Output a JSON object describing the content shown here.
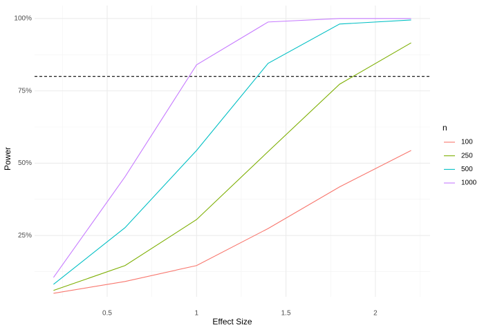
{
  "chart_data": {
    "type": "line",
    "x_label": "Effect Size",
    "y_label": "Power",
    "x": [
      0.2,
      0.6,
      1.0,
      1.4,
      1.8,
      2.2
    ],
    "series": [
      {
        "name": "100",
        "color": "#F8766D",
        "values": [
          5.0,
          9.1,
          14.6,
          27.4,
          41.8,
          54.4
        ]
      },
      {
        "name": "250",
        "color": "#7CAE00",
        "values": [
          6.0,
          14.6,
          30.5,
          54.0,
          77.3,
          91.6
        ]
      },
      {
        "name": "500",
        "color": "#00BFC4",
        "values": [
          8.1,
          27.7,
          54.4,
          84.5,
          98.1,
          99.5
        ]
      },
      {
        "name": "1000",
        "color": "#C77CFF",
        "values": [
          10.5,
          45.3,
          84.0,
          98.8,
          100,
          100
        ]
      }
    ],
    "legend_title": "n",
    "legend": "right",
    "xlim": [
      0.094,
      2.306
    ],
    "ylim": [
      3.8,
      104.5
    ],
    "xticks": [
      0.5,
      1.0,
      1.5,
      2.0
    ],
    "yticks": [
      {
        "value": 25,
        "label": "25%"
      },
      {
        "value": 50,
        "label": "50%"
      },
      {
        "value": 75,
        "label": "75%"
      },
      {
        "value": 100,
        "label": "100%"
      }
    ],
    "minor_xticks": [
      0.25,
      0.75,
      1.25,
      1.75,
      2.25
    ],
    "minor_yticks": [
      12.5,
      37.5,
      62.5,
      87.5
    ],
    "hline": 80,
    "hline_style": "dashed",
    "grid": true
  }
}
